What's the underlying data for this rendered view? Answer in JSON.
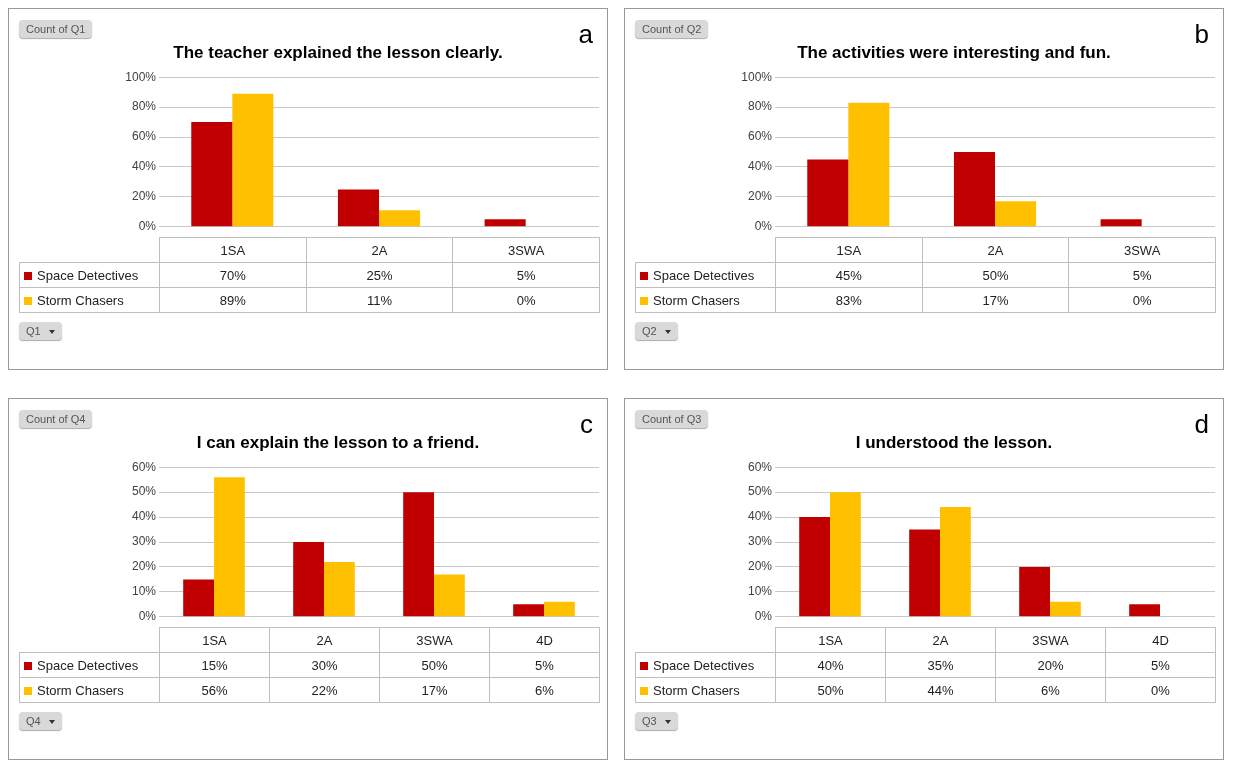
{
  "chart_data": [
    {
      "type": "bar",
      "title": "The teacher explained the lesson clearly.",
      "categories": [
        "1SA",
        "2A",
        "3SWA"
      ],
      "ylim": [
        0,
        100
      ],
      "yticks": [
        {
          "value": 0,
          "label": "0%"
        },
        {
          "value": 20,
          "label": "20%"
        },
        {
          "value": 40,
          "label": "40%"
        },
        {
          "value": 60,
          "label": "60%"
        },
        {
          "value": 80,
          "label": "80%"
        },
        {
          "value": 100,
          "label": "100%"
        }
      ],
      "grid": "y",
      "legend": "bottom",
      "annotations": [
        "Count of Q1",
        "Q1",
        "a"
      ],
      "series": [
        {
          "name": "Space Detectives",
          "color": "#c00000",
          "values": [
            70,
            25,
            5
          ],
          "value_labels": [
            "70%",
            "25%",
            "5%"
          ]
        },
        {
          "name": "Storm Chasers",
          "color": "#ffc000",
          "values": [
            89,
            11,
            0
          ],
          "value_labels": [
            "89%",
            "11%",
            "0%"
          ]
        }
      ]
    },
    {
      "type": "bar",
      "title": "The activities were interesting and fun.",
      "categories": [
        "1SA",
        "2A",
        "3SWA"
      ],
      "ylim": [
        0,
        100
      ],
      "yticks": [
        {
          "value": 0,
          "label": "0%"
        },
        {
          "value": 20,
          "label": "20%"
        },
        {
          "value": 40,
          "label": "40%"
        },
        {
          "value": 60,
          "label": "60%"
        },
        {
          "value": 80,
          "label": "80%"
        },
        {
          "value": 100,
          "label": "100%"
        }
      ],
      "grid": "y",
      "legend": "bottom",
      "annotations": [
        "Count of Q2",
        "Q2",
        "b"
      ],
      "series": [
        {
          "name": "Space Detectives",
          "color": "#c00000",
          "values": [
            45,
            50,
            5
          ],
          "value_labels": [
            "45%",
            "50%",
            "5%"
          ]
        },
        {
          "name": "Storm Chasers",
          "color": "#ffc000",
          "values": [
            83,
            17,
            0
          ],
          "value_labels": [
            "83%",
            "17%",
            "0%"
          ]
        }
      ]
    },
    {
      "type": "bar",
      "title": "I can explain the lesson to a friend.",
      "categories": [
        "1SA",
        "2A",
        "3SWA",
        "4D"
      ],
      "ylim": [
        0,
        60
      ],
      "yticks": [
        {
          "value": 0,
          "label": "0%"
        },
        {
          "value": 10,
          "label": "10%"
        },
        {
          "value": 20,
          "label": "20%"
        },
        {
          "value": 30,
          "label": "30%"
        },
        {
          "value": 40,
          "label": "40%"
        },
        {
          "value": 50,
          "label": "50%"
        },
        {
          "value": 60,
          "label": "60%"
        }
      ],
      "grid": "y",
      "legend": "bottom",
      "annotations": [
        "Count of Q4",
        "Q4",
        "c"
      ],
      "series": [
        {
          "name": "Space Detectives",
          "color": "#c00000",
          "values": [
            15,
            30,
            50,
            5
          ],
          "value_labels": [
            "15%",
            "30%",
            "50%",
            "5%"
          ]
        },
        {
          "name": "Storm Chasers",
          "color": "#ffc000",
          "values": [
            56,
            22,
            17,
            6
          ],
          "value_labels": [
            "56%",
            "22%",
            "17%",
            "6%"
          ]
        }
      ]
    },
    {
      "type": "bar",
      "title": "I understood the lesson.",
      "categories": [
        "1SA",
        "2A",
        "3SWA",
        "4D"
      ],
      "ylim": [
        0,
        60
      ],
      "yticks": [
        {
          "value": 0,
          "label": "0%"
        },
        {
          "value": 10,
          "label": "10%"
        },
        {
          "value": 20,
          "label": "20%"
        },
        {
          "value": 30,
          "label": "30%"
        },
        {
          "value": 40,
          "label": "40%"
        },
        {
          "value": 50,
          "label": "50%"
        },
        {
          "value": 60,
          "label": "60%"
        }
      ],
      "grid": "y",
      "legend": "bottom",
      "annotations": [
        "Count of Q3",
        "Q3",
        "d"
      ],
      "series": [
        {
          "name": "Space Detectives",
          "color": "#c00000",
          "values": [
            40,
            35,
            20,
            5
          ],
          "value_labels": [
            "40%",
            "35%",
            "20%",
            "5%"
          ]
        },
        {
          "name": "Storm Chasers",
          "color": "#ffc000",
          "values": [
            50,
            44,
            6,
            0
          ],
          "value_labels": [
            "50%",
            "44%",
            "6%",
            "0%"
          ]
        }
      ]
    }
  ]
}
